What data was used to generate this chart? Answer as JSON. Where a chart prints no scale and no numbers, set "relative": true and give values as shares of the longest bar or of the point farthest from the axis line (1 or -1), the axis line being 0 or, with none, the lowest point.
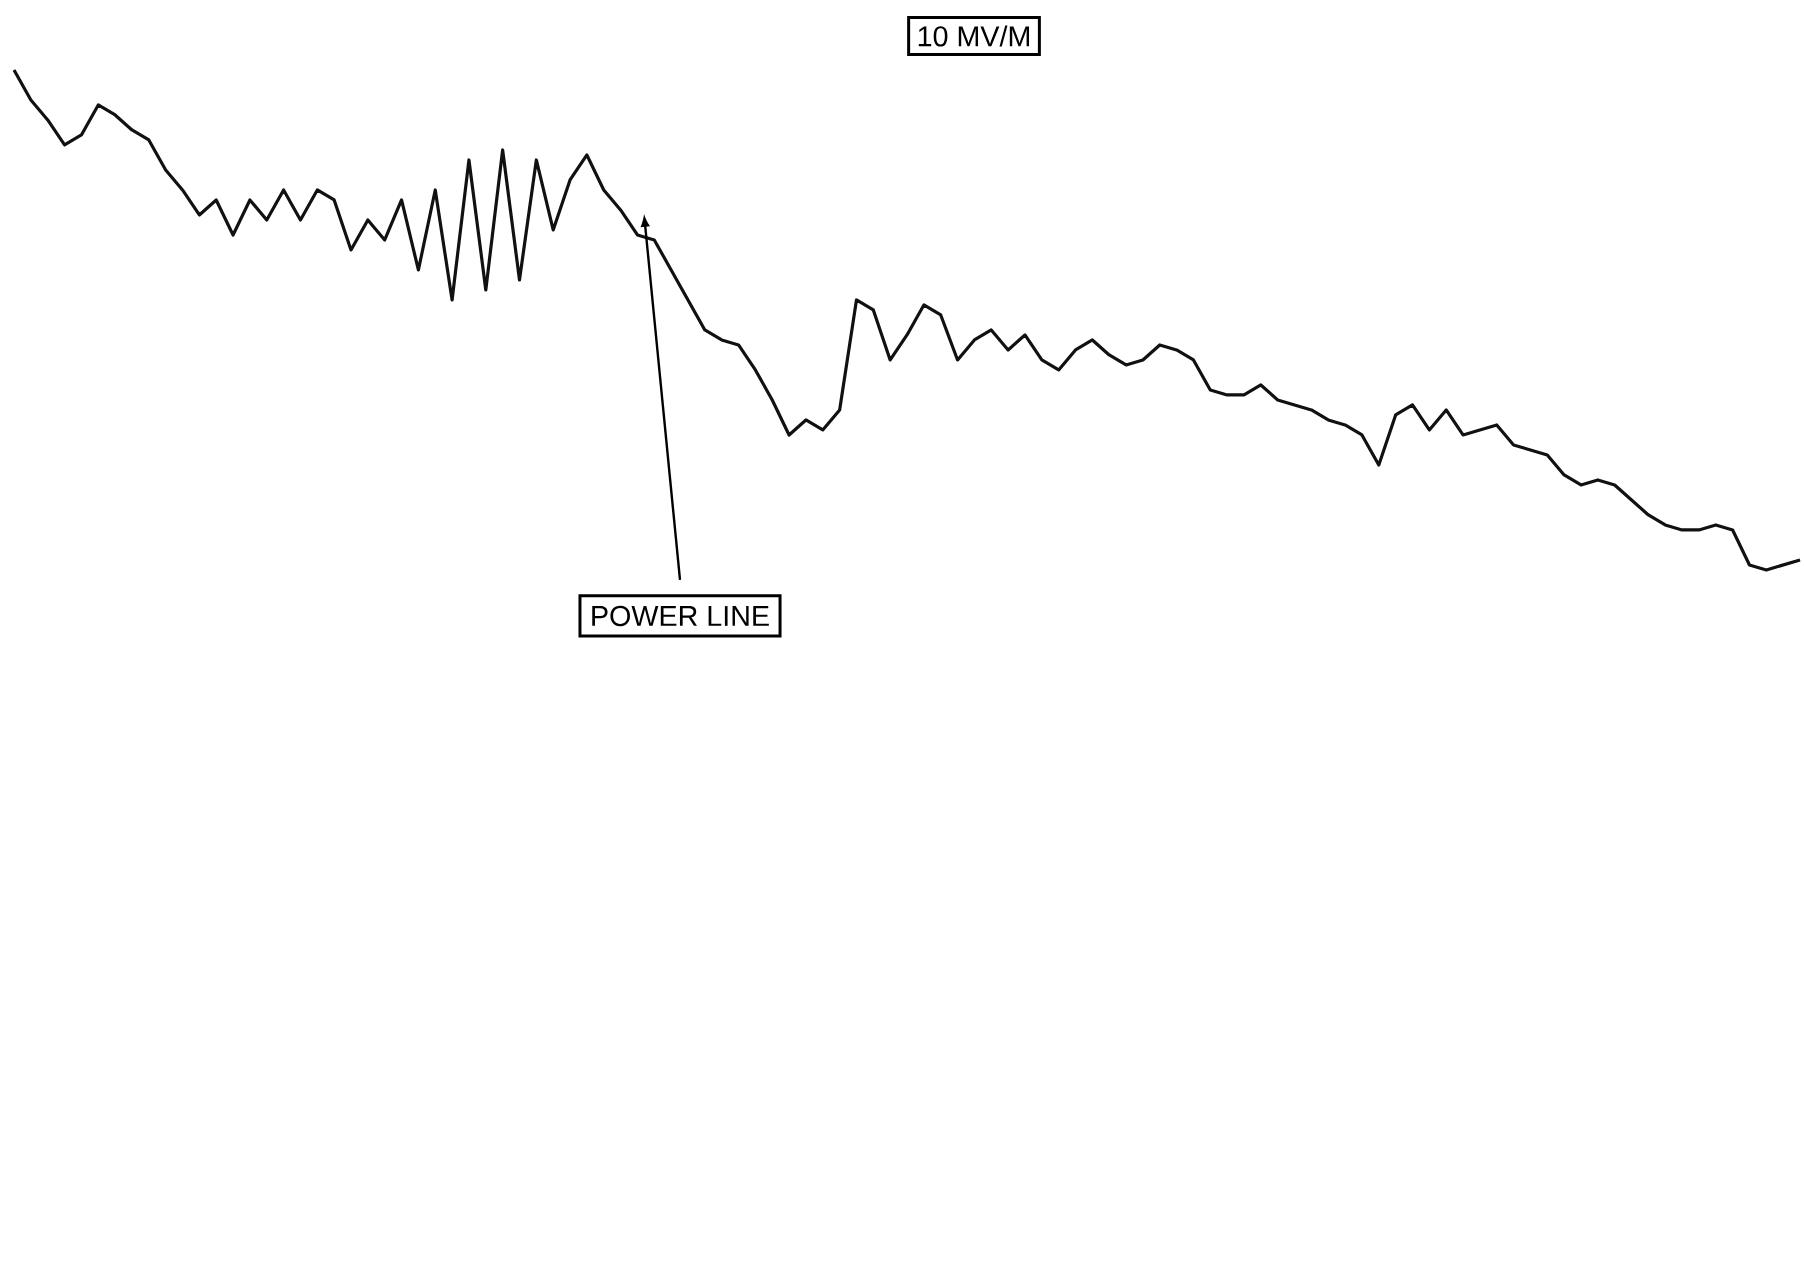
{
  "chart_data": {
    "type": "line",
    "relative": true,
    "categories": [
      null,
      null,
      null,
      null,
      null,
      null,
      null,
      null,
      null,
      null,
      null,
      null,
      null,
      null,
      null,
      null,
      null,
      null,
      null,
      null,
      null,
      null,
      null,
      null,
      null,
      null,
      null,
      null,
      null,
      null,
      null,
      null,
      null,
      null,
      null,
      null,
      null,
      null,
      null,
      null,
      null,
      null,
      null,
      null,
      null,
      null,
      null,
      null,
      null,
      null,
      null,
      null,
      null,
      null,
      null,
      null,
      null,
      null,
      null,
      null,
      null,
      null,
      null,
      null,
      null,
      null,
      null,
      null,
      null,
      null,
      null,
      null,
      null,
      null,
      null,
      null,
      null,
      null,
      null,
      null,
      null,
      null,
      null,
      null,
      null,
      null,
      null,
      null,
      null,
      null,
      null,
      null,
      null,
      null,
      null,
      null,
      null,
      null,
      null,
      null,
      null,
      null,
      null,
      null,
      null,
      null,
      null
    ],
    "series": [
      {
        "color": "#111111",
        "values": [
          1.0,
          0.94,
          0.9,
          0.85,
          0.87,
          0.93,
          0.91,
          0.88,
          0.86,
          0.8,
          0.76,
          0.71,
          0.74,
          0.67,
          0.74,
          0.7,
          0.76,
          0.7,
          0.76,
          0.74,
          0.64,
          0.7,
          0.66,
          0.74,
          0.6,
          0.76,
          0.54,
          0.82,
          0.56,
          0.84,
          0.58,
          0.82,
          0.68,
          0.78,
          0.83,
          0.76,
          0.72,
          0.67,
          0.66,
          0.6,
          0.54,
          0.48,
          0.46,
          0.45,
          0.4,
          0.34,
          0.27,
          0.3,
          0.28,
          0.32,
          0.54,
          0.52,
          0.42,
          0.47,
          0.53,
          0.51,
          0.42,
          0.46,
          0.48,
          0.44,
          0.47,
          0.42,
          0.4,
          0.44,
          0.46,
          0.43,
          0.41,
          0.42,
          0.45,
          0.44,
          0.42,
          0.36,
          0.35,
          0.35,
          0.37,
          0.34,
          0.33,
          0.32,
          0.3,
          0.29,
          0.27,
          0.21,
          0.31,
          0.33,
          0.28,
          0.32,
          0.27,
          0.28,
          0.29,
          0.25,
          0.24,
          0.23,
          0.19,
          0.17,
          0.18,
          0.17,
          0.14,
          0.11,
          0.09,
          0.08,
          0.08,
          0.09,
          0.08,
          0.01,
          0.0,
          0.01,
          0.02
        ]
      }
    ],
    "annotations": [
      "10 MV/M",
      "POWER LINE"
    ]
  }
}
